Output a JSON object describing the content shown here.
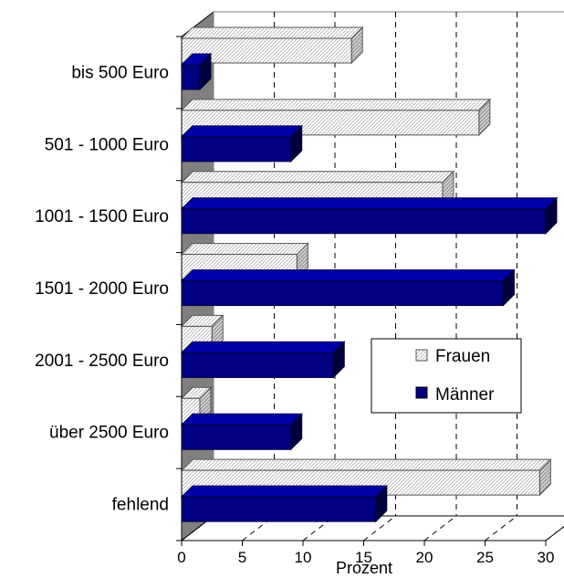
{
  "chart_data": {
    "type": "bar",
    "orientation": "horizontal",
    "categories": [
      "bis 500 Euro",
      "501 - 1000 Euro",
      "1001 - 1500 Euro",
      "1501 - 2000 Euro",
      "2001 - 2500 Euro",
      "über 2500 Euro",
      "fehlend"
    ],
    "series": [
      {
        "name": "Frauen",
        "values": [
          14,
          24.5,
          21.5,
          9.5,
          2.5,
          1.5,
          29.5
        ]
      },
      {
        "name": "Männer",
        "values": [
          1.5,
          9,
          30,
          26.5,
          12.5,
          9,
          16
        ]
      }
    ],
    "xlabel": "Prozent",
    "xlim": [
      0,
      30
    ],
    "xticks": [
      0,
      5,
      10,
      15,
      20,
      25,
      30
    ],
    "grid": "vertical dashed",
    "legend_position": "right",
    "colors": {
      "Frauen": "#ffffff",
      "Männer": "#000080"
    },
    "patterns": {
      "Frauen": "diagonal-hatch"
    }
  }
}
